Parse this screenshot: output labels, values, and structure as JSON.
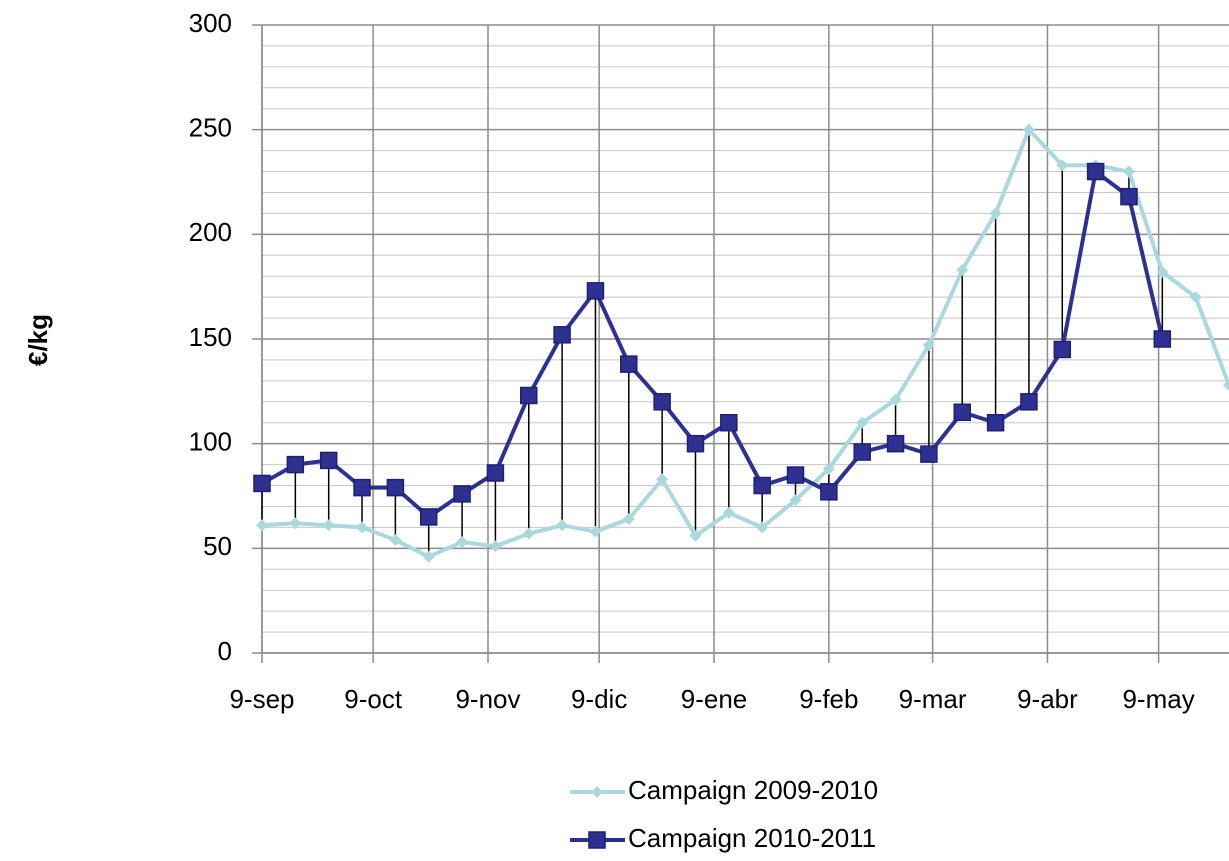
{
  "chart_data": {
    "type": "line",
    "y_label": "€/kg",
    "x": [
      0,
      9,
      18,
      27,
      36,
      45,
      54,
      63,
      72,
      81,
      90,
      99,
      108,
      117,
      126,
      135,
      144,
      153,
      162,
      171,
      180,
      189,
      198,
      207,
      216,
      225,
      234,
      243,
      252,
      261
    ],
    "series": [
      {
        "name": "Campaign 2009-2010",
        "color": "#a9d9dc",
        "marker": "diamond",
        "values": [
          61,
          62,
          61,
          60,
          54,
          46,
          53,
          51,
          57,
          61,
          58,
          64,
          83,
          56,
          67,
          60,
          73,
          88,
          110,
          121,
          147,
          183,
          210,
          250,
          233,
          233,
          230,
          182,
          170,
          128
        ]
      },
      {
        "name": "Campaign 2010-2011",
        "color": "#2e3192",
        "marker": "square",
        "values": [
          81,
          90,
          92,
          79,
          79,
          65,
          76,
          86,
          123,
          152,
          173,
          138,
          120,
          100,
          110,
          80,
          85,
          77,
          96,
          100,
          95,
          115,
          110,
          120,
          145,
          230,
          218,
          150,
          null,
          null
        ]
      }
    ],
    "xlim": [
      0,
      261
    ],
    "xticks": [
      {
        "value": 0,
        "label": "9-sep"
      },
      {
        "value": 30,
        "label": "9-oct"
      },
      {
        "value": 61,
        "label": "9-nov"
      },
      {
        "value": 91,
        "label": "9-dic"
      },
      {
        "value": 122,
        "label": "9-ene"
      },
      {
        "value": 153,
        "label": "9-feb"
      },
      {
        "value": 181,
        "label": "9-mar"
      },
      {
        "value": 212,
        "label": "9-abr"
      },
      {
        "value": 242,
        "label": "9-may"
      }
    ],
    "ylim": [
      0,
      300
    ],
    "yticks": [
      0,
      50,
      100,
      150,
      200,
      250,
      300
    ],
    "minor_step": 10,
    "grid": true,
    "drop_lines": true,
    "legend": "bottom"
  }
}
